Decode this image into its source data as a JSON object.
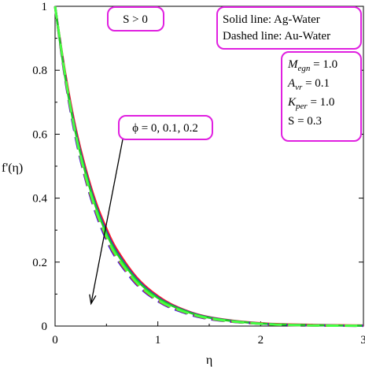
{
  "chart_data": {
    "type": "line",
    "xlabel": "η",
    "ylabel": "f'(η)",
    "xlim": [
      0,
      3
    ],
    "ylim": [
      0,
      1
    ],
    "x_ticks": [
      "0",
      "1",
      "2",
      "3"
    ],
    "y_ticks": [
      "0",
      "0.2",
      "0.4",
      "0.6",
      "0.8",
      "1"
    ],
    "x": [
      0,
      0.1,
      0.2,
      0.3,
      0.4,
      0.5,
      0.6,
      0.8,
      1.0,
      1.2,
      1.5,
      2.0,
      2.5,
      3.0
    ],
    "series": [
      {
        "group": "solid",
        "color": "#ff2020",
        "values": [
          1.0,
          0.79,
          0.62,
          0.49,
          0.385,
          0.305,
          0.24,
          0.15,
          0.094,
          0.058,
          0.028,
          0.009,
          0.004,
          0.002
        ]
      },
      {
        "group": "solid",
        "color": "#1a1aff",
        "values": [
          1.0,
          0.78,
          0.61,
          0.48,
          0.375,
          0.295,
          0.232,
          0.145,
          0.09,
          0.056,
          0.027,
          0.008,
          0.003,
          0.001
        ]
      },
      {
        "group": "solid",
        "color": "#22cc22",
        "values": [
          1.0,
          0.775,
          0.605,
          0.475,
          0.37,
          0.29,
          0.228,
          0.142,
          0.088,
          0.055,
          0.026,
          0.008,
          0.003,
          0.001
        ]
      },
      {
        "group": "dashed",
        "color": "#1a1aff",
        "values": [
          1.0,
          0.77,
          0.59,
          0.455,
          0.35,
          0.27,
          0.21,
          0.128,
          0.078,
          0.048,
          0.022,
          0.007,
          0.002,
          0.001
        ]
      },
      {
        "group": "dashed",
        "color": "#ff2020",
        "values": [
          1.0,
          0.775,
          0.597,
          0.46,
          0.356,
          0.276,
          0.214,
          0.131,
          0.08,
          0.05,
          0.023,
          0.007,
          0.002,
          0.001
        ]
      },
      {
        "group": "dashed",
        "color": "#44ff44",
        "values": [
          1.0,
          0.78,
          0.6,
          0.465,
          0.36,
          0.28,
          0.218,
          0.134,
          0.082,
          0.051,
          0.024,
          0.007,
          0.002,
          0.001
        ]
      }
    ],
    "annotations": {
      "s_label": "S > 0",
      "legend_solid": "Solid line:   Ag-Water",
      "legend_dashed": "Dashed line: Au-Water",
      "phi_label": "ϕ = 0, 0.1, 0.2",
      "params": [
        {
          "sym": "M",
          "sub": "egn",
          "val": " = 1.0"
        },
        {
          "sym": "A",
          "sub": "vr",
          "val": " = 0.1"
        },
        {
          "sym": "K",
          "sub": "per",
          "val": " = 1.0"
        },
        {
          "sym": "S",
          "sub": "",
          "val": "     =   0.3"
        }
      ],
      "arrow": {
        "from": [
          0.68,
          0.62
        ],
        "to": [
          0.35,
          0.07
        ]
      }
    },
    "grid": false,
    "box_color": "#e020e0"
  }
}
